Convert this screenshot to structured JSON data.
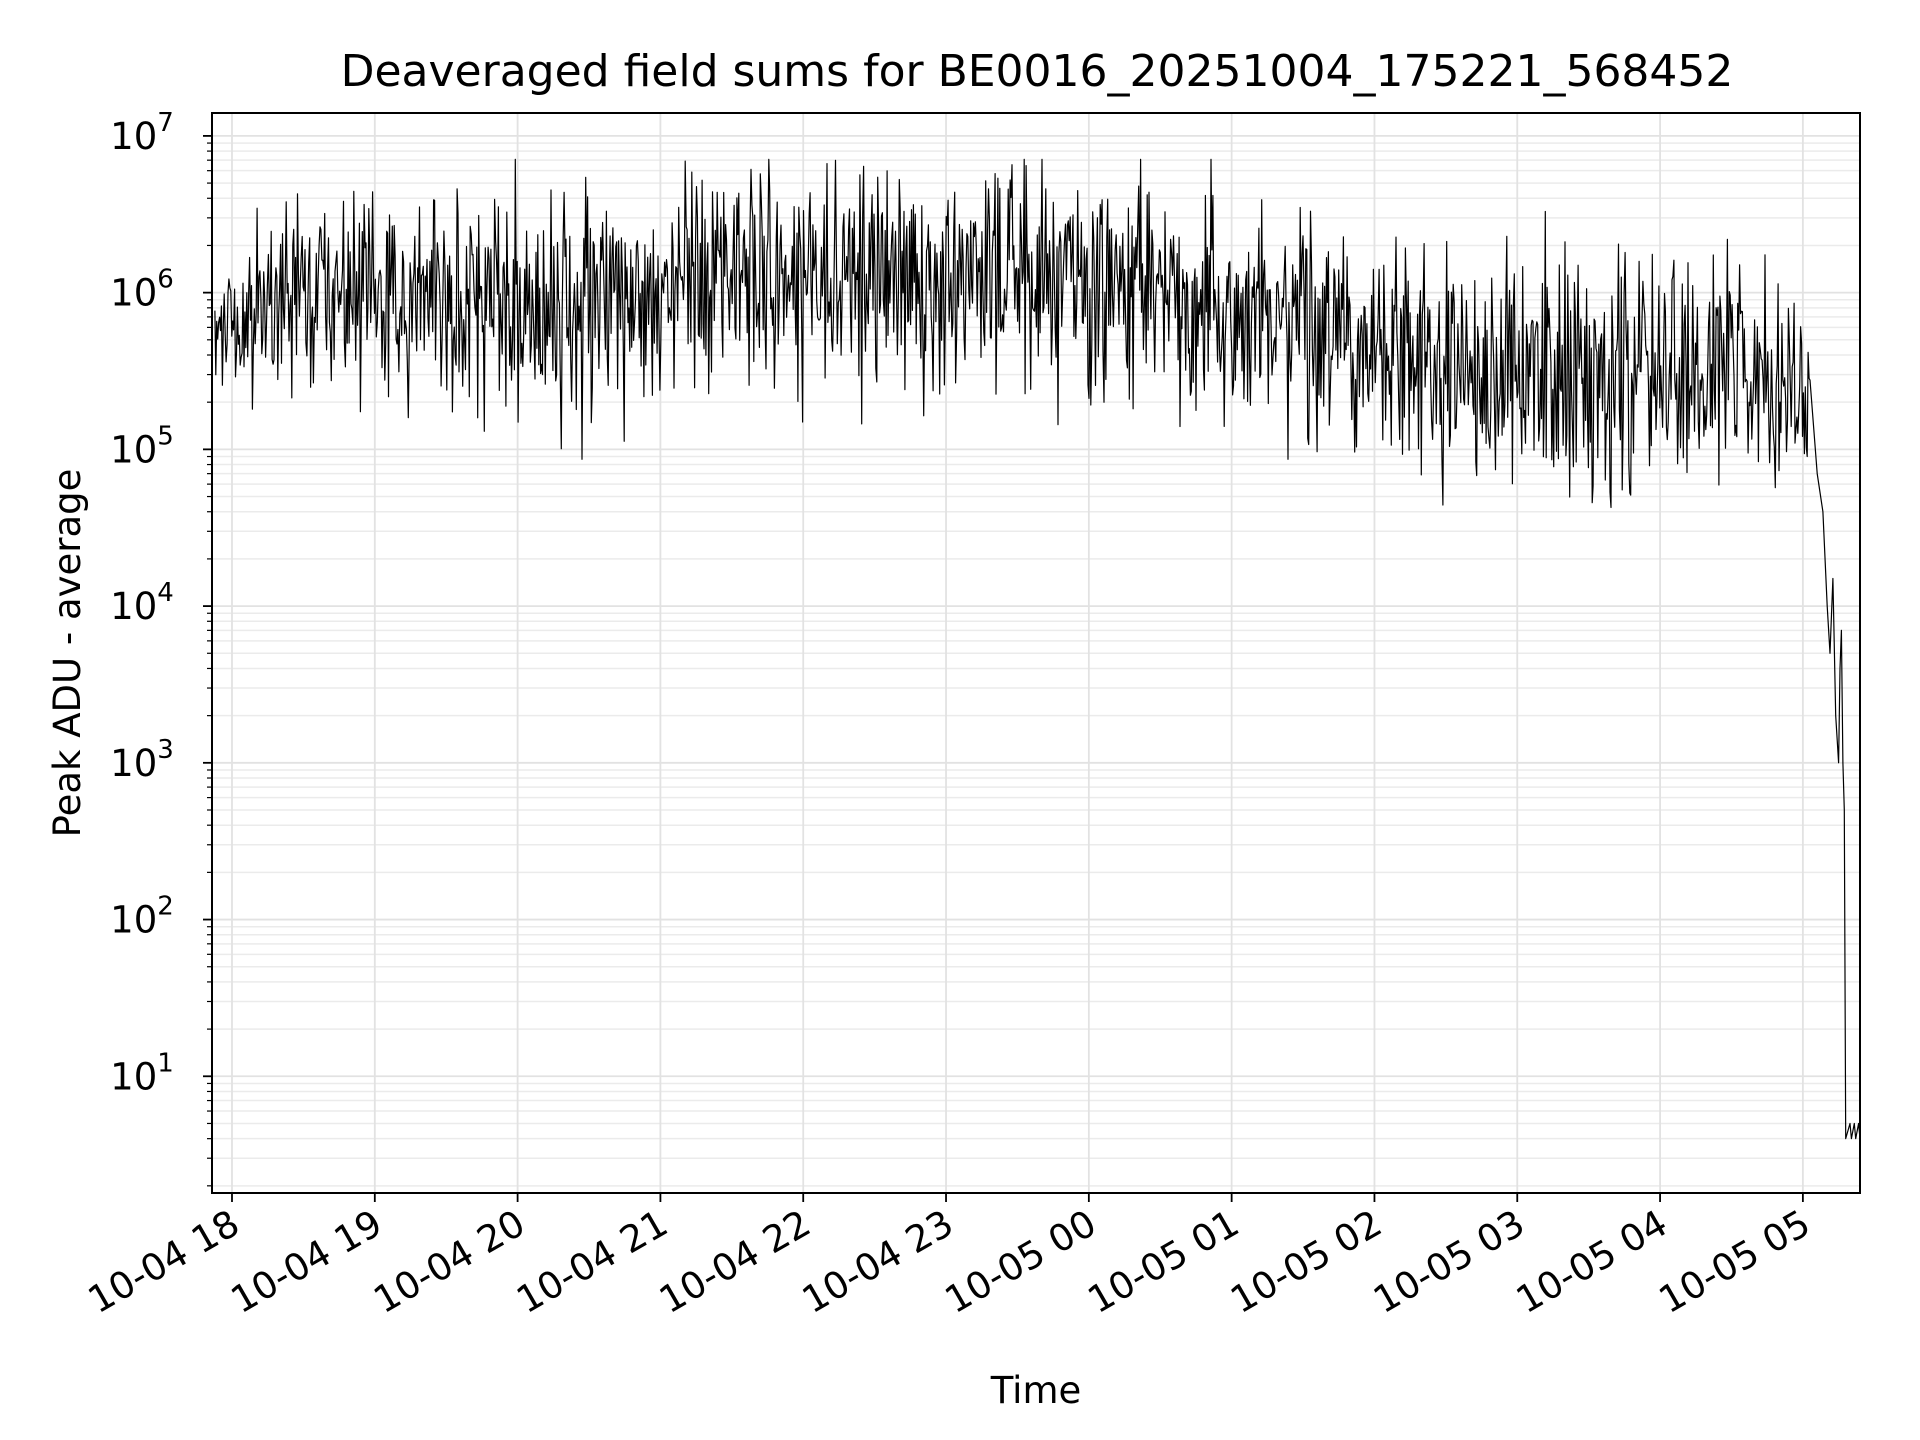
{
  "chart_data": {
    "type": "line",
    "title": "Deaveraged field sums for BE0016_20251004_175221_568452",
    "xlabel": "Time",
    "ylabel": "Peak ADU - average",
    "yscale": "log",
    "ylim": [
      1.8,
      14000000
    ],
    "y_ticks": [
      {
        "value": 10,
        "base": "10",
        "exp": "1"
      },
      {
        "value": 100,
        "base": "10",
        "exp": "2"
      },
      {
        "value": 1000,
        "base": "10",
        "exp": "3"
      },
      {
        "value": 10000,
        "base": "10",
        "exp": "4"
      },
      {
        "value": 100000,
        "base": "10",
        "exp": "5"
      },
      {
        "value": 1000000,
        "base": "10",
        "exp": "6"
      },
      {
        "value": 10000000,
        "base": "10",
        "exp": "7"
      }
    ],
    "x_unit": "hours since 2025-10-04 18:00",
    "xlim": [
      -0.14,
      11.4
    ],
    "x_ticks": [
      {
        "value": 0,
        "label": "10-04 18"
      },
      {
        "value": 1,
        "label": "10-04 19"
      },
      {
        "value": 2,
        "label": "10-04 20"
      },
      {
        "value": 3,
        "label": "10-04 21"
      },
      {
        "value": 4,
        "label": "10-04 22"
      },
      {
        "value": 5,
        "label": "10-04 23"
      },
      {
        "value": 6,
        "label": "10-05 00"
      },
      {
        "value": 7,
        "label": "10-05 01"
      },
      {
        "value": 8,
        "label": "10-05 02"
      },
      {
        "value": 9,
        "label": "10-05 03"
      },
      {
        "value": 10,
        "label": "10-05 04"
      },
      {
        "value": 11,
        "label": "10-05 05"
      }
    ],
    "grid": true,
    "series": [
      {
        "name": "field sums",
        "color": "#000000",
        "generated_samples": 1700,
        "envelope": [
          {
            "x": -0.12,
            "log_center": 5.75,
            "spread": 0.25
          },
          {
            "x": 0.2,
            "log_center": 5.95,
            "spread": 0.45
          },
          {
            "x": 1.0,
            "log_center": 6.0,
            "spread": 0.5
          },
          {
            "x": 2.5,
            "log_center": 5.9,
            "spread": 0.6
          },
          {
            "x": 3.3,
            "log_center": 6.15,
            "spread": 0.55
          },
          {
            "x": 5.0,
            "log_center": 6.05,
            "spread": 0.55
          },
          {
            "x": 6.0,
            "log_center": 6.1,
            "spread": 0.55
          },
          {
            "x": 7.0,
            "log_center": 5.95,
            "spread": 0.6
          },
          {
            "x": 8.0,
            "log_center": 5.6,
            "spread": 0.6
          },
          {
            "x": 9.0,
            "log_center": 5.5,
            "spread": 0.6
          },
          {
            "x": 10.5,
            "log_center": 5.5,
            "spread": 0.6
          },
          {
            "x": 11.05,
            "log_center": 5.4,
            "spread": 0.45
          }
        ],
        "tail_points": [
          {
            "x": 11.1,
            "y": 70000
          },
          {
            "x": 11.14,
            "y": 40000
          },
          {
            "x": 11.17,
            "y": 10000
          },
          {
            "x": 11.19,
            "y": 5000
          },
          {
            "x": 11.21,
            "y": 15000
          },
          {
            "x": 11.23,
            "y": 2000
          },
          {
            "x": 11.25,
            "y": 1000
          },
          {
            "x": 11.26,
            "y": 4000
          },
          {
            "x": 11.27,
            "y": 7000
          },
          {
            "x": 11.28,
            "y": 1000
          },
          {
            "x": 11.29,
            "y": 500
          },
          {
            "x": 11.3,
            "y": 4
          },
          {
            "x": 11.33,
            "y": 5
          },
          {
            "x": 11.34,
            "y": 4
          },
          {
            "x": 11.36,
            "y": 5
          },
          {
            "x": 11.37,
            "y": 4
          },
          {
            "x": 11.39,
            "y": 5
          },
          {
            "x": 11.4,
            "y": 4
          }
        ]
      }
    ]
  }
}
